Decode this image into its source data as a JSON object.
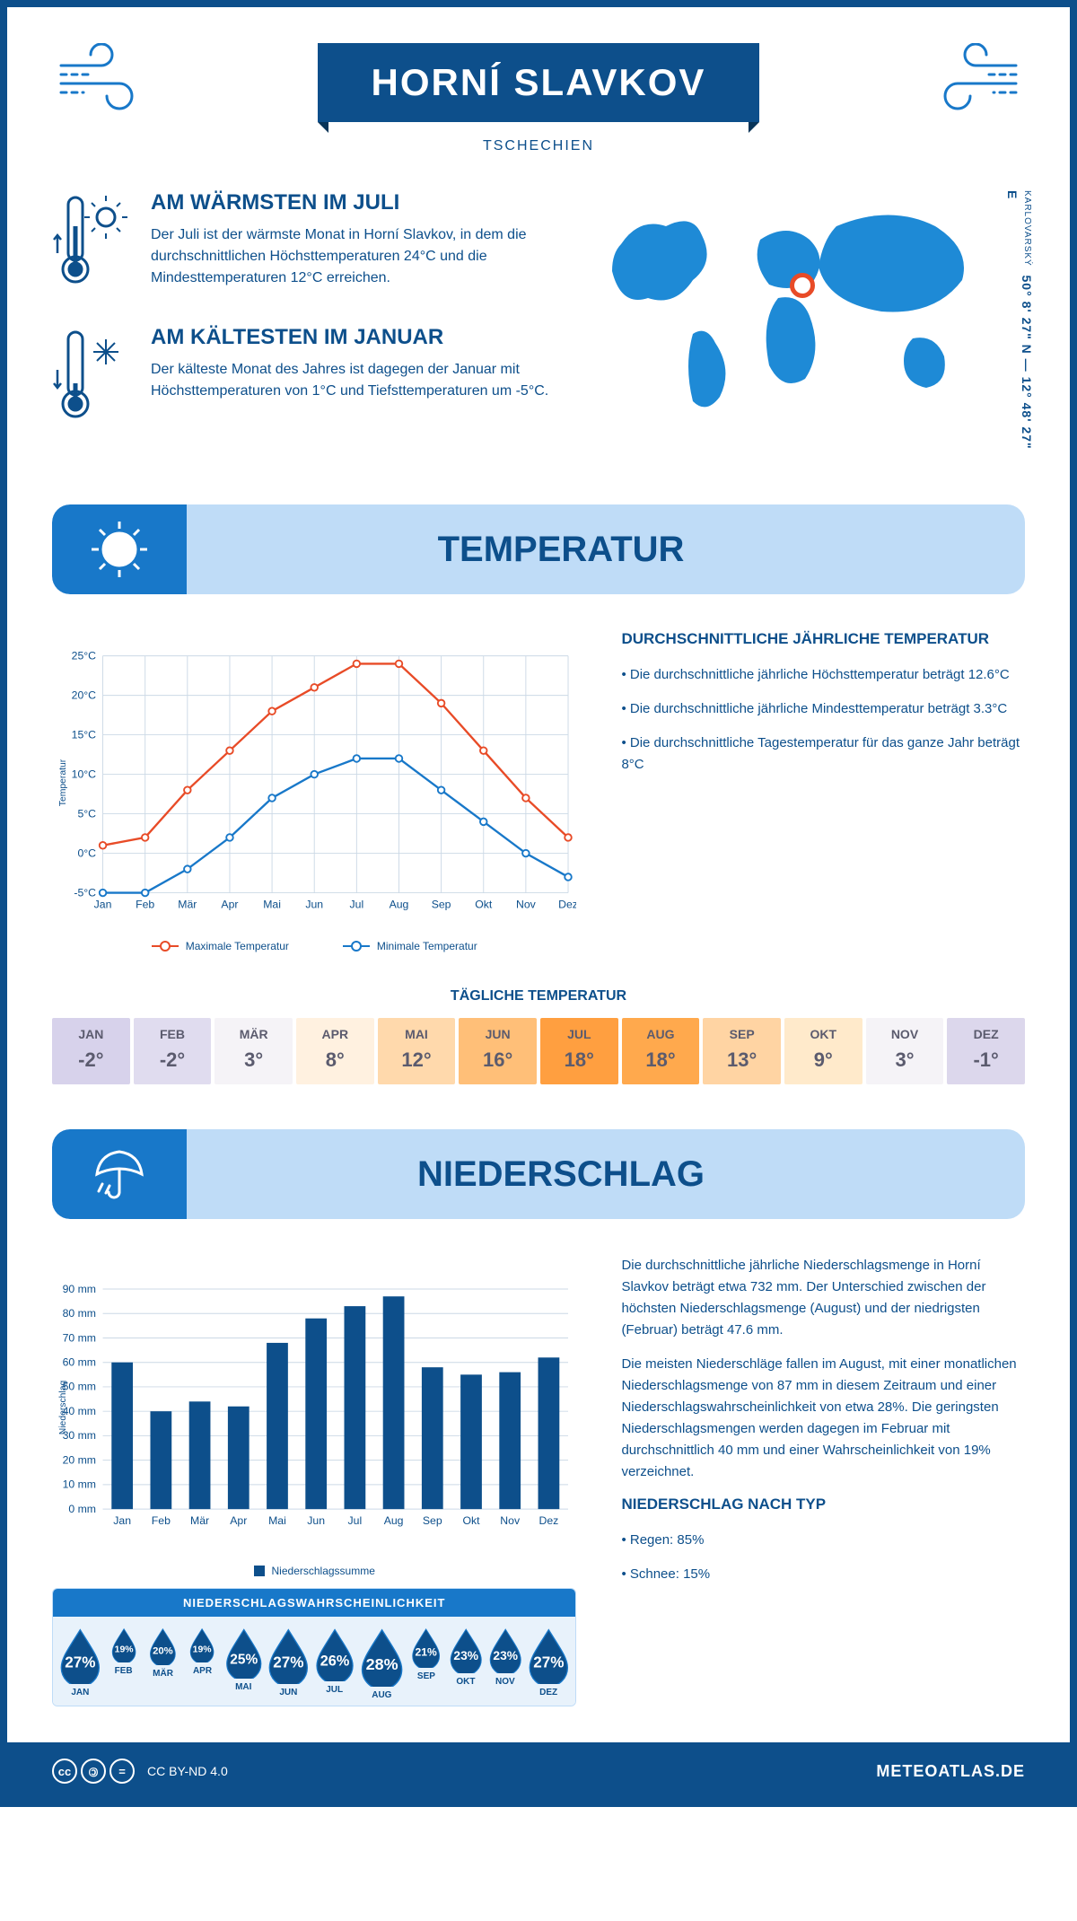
{
  "header": {
    "title": "HORNÍ SLAVKOV",
    "subtitle": "TSCHECHIEN"
  },
  "coords": {
    "lat_lon": "50° 8' 27\" N — 12° 48' 27\" E",
    "region": "KARLOVARSKÝ"
  },
  "warmest": {
    "heading": "AM WÄRMSTEN IM JULI",
    "text": "Der Juli ist der wärmste Monat in Horní Slavkov, in dem die durchschnittlichen Höchsttemperaturen 24°C und die Mindesttemperaturen 12°C erreichen."
  },
  "coldest": {
    "heading": "AM KÄLTESTEN IM JANUAR",
    "text": "Der kälteste Monat des Jahres ist dagegen der Januar mit Höchsttemperaturen von 1°C und Tiefsttemperaturen um -5°C."
  },
  "sections": {
    "temp": "TEMPERATUR",
    "precip": "NIEDERSCHLAG"
  },
  "temp_chart": {
    "type": "line",
    "months": [
      "Jan",
      "Feb",
      "Mär",
      "Apr",
      "Mai",
      "Jun",
      "Jul",
      "Aug",
      "Sep",
      "Okt",
      "Nov",
      "Dez"
    ],
    "max_values": [
      1,
      2,
      8,
      13,
      18,
      21,
      24,
      24,
      19,
      13,
      7,
      2
    ],
    "min_values": [
      -5,
      -5,
      -2,
      2,
      7,
      10,
      12,
      12,
      8,
      4,
      0,
      -3
    ],
    "max_color": "#e84b27",
    "min_color": "#1878c9",
    "grid_color": "#ccd9e6",
    "y_label": "Temperatur",
    "ylim": [
      -5,
      25
    ],
    "ytick_step": 5,
    "ytick_suffix": "°C",
    "line_width": 2.5,
    "marker": "circle",
    "legend_max": "Maximale Temperatur",
    "legend_min": "Minimale Temperatur"
  },
  "temp_side": {
    "heading": "DURCHSCHNITTLICHE JÄHRLICHE TEMPERATUR",
    "b1": "• Die durchschnittliche jährliche Höchsttemperatur beträgt 12.6°C",
    "b2": "• Die durchschnittliche jährliche Mindesttemperatur beträgt 3.3°C",
    "b3": "• Die durchschnittliche Tagestemperatur für das ganze Jahr beträgt 8°C"
  },
  "daily_temp": {
    "heading": "TÄGLICHE TEMPERATUR",
    "months": [
      "JAN",
      "FEB",
      "MÄR",
      "APR",
      "MAI",
      "JUN",
      "JUL",
      "AUG",
      "SEP",
      "OKT",
      "NOV",
      "DEZ"
    ],
    "values": [
      "-2°",
      "-2°",
      "3°",
      "8°",
      "12°",
      "16°",
      "18°",
      "18°",
      "13°",
      "9°",
      "3°",
      "-1°"
    ],
    "bg_colors": [
      "#d7d2eb",
      "#e0dcef",
      "#f5f3f7",
      "#fff1e0",
      "#ffd9ac",
      "#ffbf78",
      "#ff9f40",
      "#ffa94d",
      "#ffd4a3",
      "#ffeacb",
      "#f5f3f7",
      "#dcd7ec"
    ],
    "fg_color": "#5b5b6e"
  },
  "precip_chart": {
    "type": "bar",
    "months": [
      "Jan",
      "Feb",
      "Mär",
      "Apr",
      "Mai",
      "Jun",
      "Jul",
      "Aug",
      "Sep",
      "Okt",
      "Nov",
      "Dez"
    ],
    "values": [
      60,
      40,
      44,
      42,
      68,
      78,
      83,
      87,
      58,
      55,
      56,
      62
    ],
    "bar_color": "#0d4f8b",
    "grid_color": "#ccd9e6",
    "y_label": "Niederschlag",
    "ylim": [
      0,
      90
    ],
    "ytick_step": 10,
    "ytick_suffix": " mm",
    "bar_width": 0.55,
    "legend": "Niederschlagssumme"
  },
  "precip_side": {
    "p1": "Die durchschnittliche jährliche Niederschlagsmenge in Horní Slavkov beträgt etwa 732 mm. Der Unterschied zwischen der höchsten Niederschlagsmenge (August) und der niedrigsten (Februar) beträgt 47.6 mm.",
    "p2": "Die meisten Niederschläge fallen im August, mit einer monatlichen Niederschlagsmenge von 87 mm in diesem Zeitraum und einer Niederschlagswahrscheinlichkeit von etwa 28%. Die geringsten Niederschlagsmengen werden dagegen im Februar mit durchschnittlich 40 mm und einer Wahrscheinlichkeit von 19% verzeichnet.",
    "type_head": "NIEDERSCHLAG NACH TYP",
    "type_1": "• Regen: 85%",
    "type_2": "• Schnee: 15%"
  },
  "precip_prob": {
    "heading": "NIEDERSCHLAGSWAHRSCHEINLICHKEIT",
    "months": [
      "JAN",
      "FEB",
      "MÄR",
      "APR",
      "MAI",
      "JUN",
      "JUL",
      "AUG",
      "SEP",
      "OKT",
      "NOV",
      "DEZ"
    ],
    "values": [
      27,
      19,
      20,
      19,
      25,
      27,
      26,
      28,
      21,
      23,
      23,
      27
    ],
    "drop_min": 19,
    "drop_max": 28,
    "fill_color": "#0d4f8b",
    "outline_color": "#1878c9",
    "text_color": "#ffffff"
  },
  "footer": {
    "license": "CC BY-ND 4.0",
    "site": "METEOATLAS.DE"
  }
}
